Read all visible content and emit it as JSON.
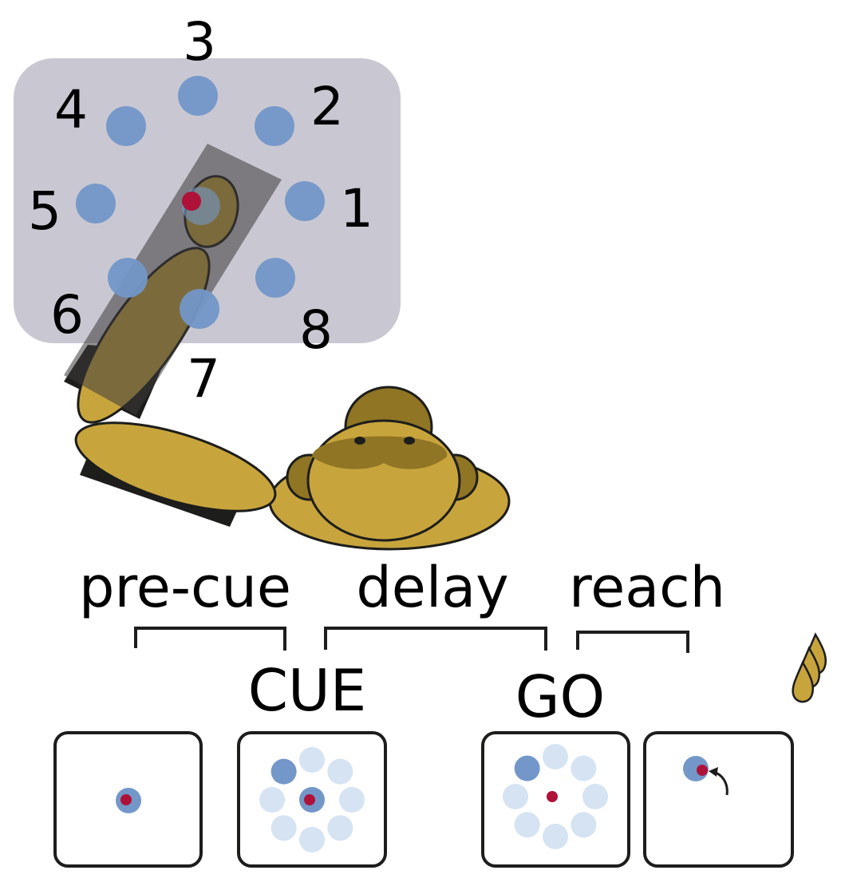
{
  "targets": [
    "1",
    "2",
    "3",
    "4",
    "5",
    "6",
    "7",
    "8"
  ],
  "phases": [
    "pre-cue",
    "delay",
    "reach"
  ],
  "events": [
    "CUE",
    "GO"
  ],
  "panels": [
    {
      "stage": "pre-cue",
      "shows": "center hold"
    },
    {
      "stage": "cue",
      "shows": "8 targets, target 4 cued"
    },
    {
      "stage": "go",
      "shows": "center removed, target 4 cued"
    },
    {
      "stage": "reach",
      "shows": "hand on target 4"
    }
  ],
  "icons": {
    "monkey": "monkey-icon",
    "reward": "juice-drops-icon",
    "movement": "curved-arrow-icon"
  },
  "colors": {
    "workspace": "#c9c8d2",
    "target": "#7397c8",
    "target_faint": "#d5e3f3",
    "hand_marker": "#ae1238",
    "monkey_fur": "#c8a53c",
    "monkey_dark": "#8f7524",
    "outline": "#1d1d1b"
  }
}
